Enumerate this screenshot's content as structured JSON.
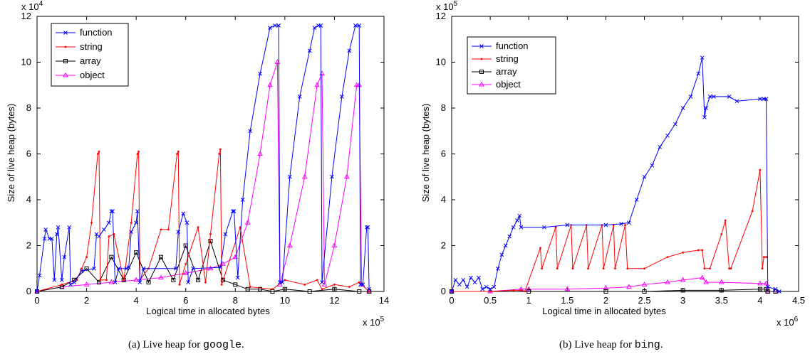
{
  "chart_data": [
    {
      "type": "line",
      "xlabel": "Logical time in allocated bytes",
      "ylabel": "Size of live heap (bytes)",
      "x_multiplier": "x 10^5",
      "y_multiplier": "x 10^4",
      "xlim": [
        0,
        14
      ],
      "ylim": [
        0,
        12
      ],
      "xticks": [
        "0",
        "2",
        "4",
        "6",
        "8",
        "10",
        "12",
        "14"
      ],
      "yticks": [
        "0",
        "2",
        "4",
        "6",
        "8",
        "10",
        "12"
      ],
      "caption_prefix": "(a)  Live heap for ",
      "caption_code": "google",
      "caption_suffix": ".",
      "legend_position": "top-left",
      "series": [
        {
          "name": "function",
          "color": "#0000ff",
          "marker": "x",
          "x": [
            0,
            0.1,
            0.3,
            0.35,
            0.5,
            0.6,
            0.7,
            0.8,
            0.85,
            1.0,
            1.1,
            1.3,
            1.35,
            1.5,
            1.8,
            2.3,
            2.4,
            2.5,
            2.7,
            2.9,
            3.0,
            3.05,
            3.15,
            3.3,
            3.6,
            3.7,
            3.8,
            4.0,
            4.05,
            4.15,
            4.3,
            5.6,
            5.7,
            5.9,
            6.05,
            6.1,
            6.3,
            7.4,
            7.6,
            7.9,
            7.95,
            8.1,
            8.3,
            8.6,
            9.0,
            9.4,
            9.6,
            9.75,
            9.8,
            9.9,
            10.2,
            10.6,
            11.0,
            11.2,
            11.35,
            11.45,
            11.5,
            11.9,
            12.3,
            12.6,
            12.85,
            13.0,
            13.05,
            13.15,
            13.3,
            13.35,
            13.4
          ],
          "y": [
            0,
            0.7,
            2.3,
            2.7,
            2.3,
            2.3,
            0.5,
            2.5,
            2.8,
            0.5,
            1.5,
            2.8,
            0.3,
            0.4,
            0.9,
            1.0,
            2.5,
            2.4,
            2.7,
            3.0,
            3.5,
            3.5,
            0.4,
            1.0,
            1.0,
            1.05,
            2.6,
            3.0,
            3.5,
            0.4,
            1.0,
            1.0,
            2.6,
            3.4,
            3.0,
            0.4,
            1.0,
            1.05,
            2.5,
            3.5,
            3.5,
            0.6,
            4.0,
            7.0,
            9.5,
            11.5,
            11.6,
            11.6,
            0.4,
            0.4,
            5.0,
            8.5,
            10.5,
            11.5,
            11.6,
            11.6,
            0.4,
            5.0,
            8.5,
            10.5,
            11.6,
            11.6,
            0.3,
            0.3,
            2.8,
            2.8,
            0.1
          ]
        },
        {
          "name": "string",
          "color": "#ff0000",
          "marker": "dot",
          "x": [
            0,
            1.0,
            1.6,
            1.8,
            2.0,
            2.2,
            2.45,
            2.5,
            2.55,
            2.8,
            2.9,
            3.1,
            3.5,
            3.8,
            4.05,
            4.1,
            4.15,
            4.5,
            5.0,
            5.3,
            5.65,
            5.7,
            5.75,
            6.0,
            6.5,
            6.8,
            7.0,
            7.35,
            7.4,
            7.45,
            8.2,
            8.6,
            9.5,
            10.0,
            10.8,
            11.3,
            11.5,
            12.0,
            12.6,
            13.0,
            13.4
          ],
          "y": [
            0,
            0.3,
            0.5,
            1.0,
            1.5,
            3.0,
            6.0,
            6.1,
            0.5,
            0.5,
            2.4,
            2.5,
            0.5,
            3.0,
            6.0,
            6.1,
            0.5,
            1.0,
            2.7,
            2.7,
            6.0,
            6.1,
            0.3,
            1.2,
            2.8,
            0.4,
            2.5,
            6.0,
            6.2,
            0.3,
            2.8,
            0.2,
            0.1,
            0.5,
            0.3,
            0.5,
            0.1,
            0.3,
            0.2,
            0.4,
            0
          ]
        },
        {
          "name": "array",
          "color": "#000000",
          "marker": "square",
          "x": [
            0,
            1.0,
            1.5,
            2.0,
            2.5,
            3.0,
            3.5,
            4.0,
            4.5,
            5.0,
            5.5,
            6.0,
            6.5,
            7.0,
            7.5,
            8.0,
            8.5,
            9.0,
            9.5,
            10.0,
            11.0,
            12.0,
            13.0,
            13.4
          ],
          "y": [
            0,
            0.2,
            0.5,
            1.0,
            0.4,
            1.5,
            0.5,
            1.7,
            0.4,
            1.5,
            0.5,
            2.0,
            0.5,
            2.2,
            0.5,
            0.3,
            0.1,
            0.1,
            0,
            0.1,
            0,
            0.1,
            0,
            0
          ]
        },
        {
          "name": "object",
          "color": "#ff00ff",
          "marker": "triangle",
          "x": [
            0,
            1.0,
            2.0,
            3.0,
            4.0,
            5.0,
            6.0,
            7.0,
            7.5,
            8.0,
            8.5,
            9.0,
            9.4,
            9.7,
            9.8,
            10.2,
            10.8,
            11.3,
            11.5,
            11.6,
            12.0,
            12.5,
            12.9,
            13.0,
            13.1,
            13.4
          ],
          "y": [
            0,
            0.2,
            0.3,
            0.4,
            0.5,
            0.6,
            0.8,
            1.0,
            1.2,
            1.5,
            3.0,
            6.0,
            9.0,
            10.0,
            0.3,
            2.0,
            5.0,
            9.0,
            9.5,
            0.3,
            2.0,
            5.0,
            9.0,
            9.0,
            0.3,
            0
          ]
        }
      ]
    },
    {
      "type": "line",
      "xlabel": "Logical time in allocated bytes",
      "ylabel": "Size of live heap (bytes)",
      "x_multiplier": "x 10^6",
      "y_multiplier": "x 10^5",
      "xlim": [
        0,
        4.5
      ],
      "ylim": [
        0,
        12
      ],
      "xticks": [
        "0",
        "0.5",
        "1",
        "1.5",
        "2",
        "2.5",
        "3",
        "3.5",
        "4",
        "4.5"
      ],
      "yticks": [
        "0",
        "2",
        "4",
        "6",
        "8",
        "10",
        "12"
      ],
      "caption_prefix": "(b)  Live heap for ",
      "caption_code": "bing",
      "caption_suffix": ".",
      "legend_position": "top-left",
      "series": [
        {
          "name": "function",
          "color": "#0000ff",
          "marker": "x",
          "x": [
            0,
            0.05,
            0.1,
            0.15,
            0.2,
            0.25,
            0.3,
            0.35,
            0.4,
            0.45,
            0.5,
            0.55,
            0.6,
            0.65,
            0.7,
            0.75,
            0.8,
            0.85,
            0.88,
            0.9,
            1.2,
            1.5,
            2.0,
            2.2,
            2.3,
            2.4,
            2.5,
            2.6,
            2.7,
            2.8,
            2.9,
            3.0,
            3.1,
            3.2,
            3.25,
            3.28,
            3.3,
            3.35,
            3.4,
            3.6,
            3.7,
            4.0,
            4.05,
            4.08,
            4.1,
            4.2,
            4.25
          ],
          "y": [
            0,
            0.5,
            0.3,
            0.5,
            0.2,
            0.6,
            0.4,
            0.6,
            0.1,
            0.2,
            0.1,
            0.2,
            1.0,
            1.6,
            2.0,
            2.4,
            2.8,
            3.1,
            3.3,
            2.8,
            2.8,
            2.9,
            2.9,
            2.95,
            3.0,
            4.0,
            5.0,
            5.5,
            6.3,
            6.8,
            7.3,
            8.0,
            8.5,
            9.5,
            10.2,
            7.6,
            8.0,
            8.5,
            8.5,
            8.5,
            8.3,
            8.4,
            8.4,
            8.4,
            0.2,
            0.1,
            0
          ]
        },
        {
          "name": "string",
          "color": "#ff0000",
          "marker": "dot",
          "x": [
            0,
            0.5,
            0.8,
            0.9,
            0.95,
            1.15,
            1.17,
            1.35,
            1.37,
            1.55,
            1.57,
            1.75,
            1.77,
            1.95,
            1.97,
            2.1,
            2.12,
            2.25,
            2.28,
            2.5,
            2.8,
            3.0,
            3.2,
            3.25,
            3.28,
            3.35,
            3.5,
            3.55,
            3.6,
            3.62,
            3.9,
            4.0,
            4.03,
            4.05,
            4.08
          ],
          "y": [
            0,
            0,
            0.05,
            0.05,
            0,
            1.9,
            1.0,
            2.8,
            1.0,
            2.9,
            1.0,
            2.9,
            1.0,
            2.9,
            1.0,
            2.9,
            1.0,
            2.9,
            1.0,
            1.0,
            1.5,
            1.7,
            1.8,
            1.8,
            1.0,
            1.0,
            2.5,
            3.1,
            1.0,
            1.0,
            3.5,
            5.3,
            1.0,
            1.5,
            1.5
          ]
        },
        {
          "name": "array",
          "color": "#000000",
          "marker": "square",
          "x": [
            0,
            1.0,
            2.0,
            2.5,
            3.0,
            3.5,
            4.0,
            4.08,
            4.1,
            4.2
          ],
          "y": [
            0,
            0,
            0,
            0,
            0.05,
            0.05,
            0.1,
            0.1,
            0,
            0
          ]
        },
        {
          "name": "object",
          "color": "#ff00ff",
          "marker": "triangle",
          "x": [
            0,
            0.5,
            0.9,
            1.0,
            1.5,
            2.0,
            2.3,
            2.5,
            2.8,
            3.0,
            3.25,
            3.3,
            3.5,
            4.0,
            4.08,
            4.1,
            4.2
          ],
          "y": [
            0,
            0,
            0.1,
            0.1,
            0.1,
            0.15,
            0.2,
            0.3,
            0.4,
            0.5,
            0.6,
            0.4,
            0.4,
            0.35,
            0.35,
            0,
            0
          ]
        }
      ]
    }
  ]
}
